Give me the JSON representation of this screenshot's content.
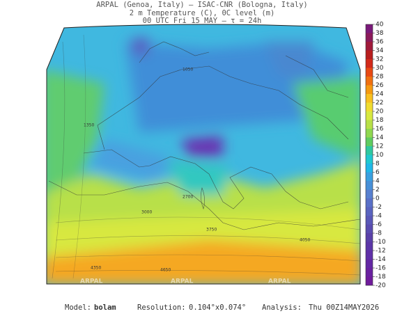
{
  "header": {
    "lines": [
      "ARPAL (Genoa, Italy)  –  ISAC-CNR (Bologna, Italy)",
      "2 m Temperature (C), 0C level (m)",
      "00 UTC Fri 15 MAY  –  τ = 24h"
    ]
  },
  "colorbar": {
    "ticks": [
      40,
      38,
      36,
      34,
      32,
      30,
      28,
      26,
      24,
      22,
      20,
      18,
      16,
      14,
      12,
      10,
      8,
      6,
      4,
      2,
      0,
      -2,
      -4,
      -6,
      -8,
      -10,
      -12,
      -14,
      -16,
      -18,
      -20
    ],
    "colors": [
      "#7a1a7a",
      "#8b1a5a",
      "#a01a3a",
      "#b81e1e",
      "#d22a1a",
      "#e84a14",
      "#f07010",
      "#f59a10",
      "#f8c020",
      "#f0dc30",
      "#d8e840",
      "#b8e048",
      "#90d850",
      "#60cc60",
      "#30c8a0",
      "#20c8d0",
      "#20b8e8",
      "#3aa0e0",
      "#4890d8",
      "#5880d0",
      "#5a70c8",
      "#5a64c0",
      "#5a58b8",
      "#5a4cb0",
      "#5a40a8",
      "#5c36a8",
      "#6030a8",
      "#6428a4",
      "#6a22a0",
      "#701c9c"
    ]
  },
  "contour_labels": [
    "1050",
    "1350",
    "2700",
    "3000",
    "3750",
    "4050",
    "4350",
    "4650"
  ],
  "watermark": "ARPAL",
  "footer": {
    "model_label": "Model:",
    "model": "bolam",
    "resolution_label": "Resolution:",
    "resolution": "0.104°x0.074°",
    "analysis_label": "Analysis:",
    "analysis": "Thu 00Z14MAY2026"
  }
}
